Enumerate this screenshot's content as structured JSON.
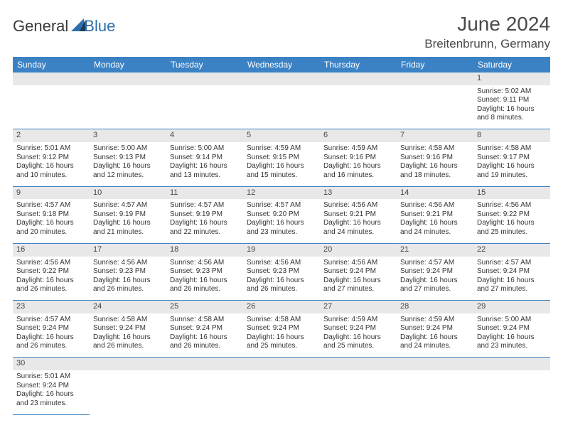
{
  "logo": {
    "text1": "General",
    "text2": "Blue"
  },
  "title": "June 2024",
  "subtitle": "Breitenbrunn, Germany",
  "dayHeaders": [
    "Sunday",
    "Monday",
    "Tuesday",
    "Wednesday",
    "Thursday",
    "Friday",
    "Saturday"
  ],
  "colors": {
    "headerBg": "#3b82c4",
    "headerText": "#ffffff",
    "dayNumBg": "#e8e8e8",
    "border": "#3b82c4",
    "textDark": "#333333"
  },
  "weeks": [
    [
      null,
      null,
      null,
      null,
      null,
      null,
      {
        "n": "1",
        "sr": "5:02 AM",
        "ss": "9:11 PM",
        "dl": "16 hours and 8 minutes."
      }
    ],
    [
      {
        "n": "2",
        "sr": "5:01 AM",
        "ss": "9:12 PM",
        "dl": "16 hours and 10 minutes."
      },
      {
        "n": "3",
        "sr": "5:00 AM",
        "ss": "9:13 PM",
        "dl": "16 hours and 12 minutes."
      },
      {
        "n": "4",
        "sr": "5:00 AM",
        "ss": "9:14 PM",
        "dl": "16 hours and 13 minutes."
      },
      {
        "n": "5",
        "sr": "4:59 AM",
        "ss": "9:15 PM",
        "dl": "16 hours and 15 minutes."
      },
      {
        "n": "6",
        "sr": "4:59 AM",
        "ss": "9:16 PM",
        "dl": "16 hours and 16 minutes."
      },
      {
        "n": "7",
        "sr": "4:58 AM",
        "ss": "9:16 PM",
        "dl": "16 hours and 18 minutes."
      },
      {
        "n": "8",
        "sr": "4:58 AM",
        "ss": "9:17 PM",
        "dl": "16 hours and 19 minutes."
      }
    ],
    [
      {
        "n": "9",
        "sr": "4:57 AM",
        "ss": "9:18 PM",
        "dl": "16 hours and 20 minutes."
      },
      {
        "n": "10",
        "sr": "4:57 AM",
        "ss": "9:19 PM",
        "dl": "16 hours and 21 minutes."
      },
      {
        "n": "11",
        "sr": "4:57 AM",
        "ss": "9:19 PM",
        "dl": "16 hours and 22 minutes."
      },
      {
        "n": "12",
        "sr": "4:57 AM",
        "ss": "9:20 PM",
        "dl": "16 hours and 23 minutes."
      },
      {
        "n": "13",
        "sr": "4:56 AM",
        "ss": "9:21 PM",
        "dl": "16 hours and 24 minutes."
      },
      {
        "n": "14",
        "sr": "4:56 AM",
        "ss": "9:21 PM",
        "dl": "16 hours and 24 minutes."
      },
      {
        "n": "15",
        "sr": "4:56 AM",
        "ss": "9:22 PM",
        "dl": "16 hours and 25 minutes."
      }
    ],
    [
      {
        "n": "16",
        "sr": "4:56 AM",
        "ss": "9:22 PM",
        "dl": "16 hours and 26 minutes."
      },
      {
        "n": "17",
        "sr": "4:56 AM",
        "ss": "9:23 PM",
        "dl": "16 hours and 26 minutes."
      },
      {
        "n": "18",
        "sr": "4:56 AM",
        "ss": "9:23 PM",
        "dl": "16 hours and 26 minutes."
      },
      {
        "n": "19",
        "sr": "4:56 AM",
        "ss": "9:23 PM",
        "dl": "16 hours and 26 minutes."
      },
      {
        "n": "20",
        "sr": "4:56 AM",
        "ss": "9:24 PM",
        "dl": "16 hours and 27 minutes."
      },
      {
        "n": "21",
        "sr": "4:57 AM",
        "ss": "9:24 PM",
        "dl": "16 hours and 27 minutes."
      },
      {
        "n": "22",
        "sr": "4:57 AM",
        "ss": "9:24 PM",
        "dl": "16 hours and 27 minutes."
      }
    ],
    [
      {
        "n": "23",
        "sr": "4:57 AM",
        "ss": "9:24 PM",
        "dl": "16 hours and 26 minutes."
      },
      {
        "n": "24",
        "sr": "4:58 AM",
        "ss": "9:24 PM",
        "dl": "16 hours and 26 minutes."
      },
      {
        "n": "25",
        "sr": "4:58 AM",
        "ss": "9:24 PM",
        "dl": "16 hours and 26 minutes."
      },
      {
        "n": "26",
        "sr": "4:58 AM",
        "ss": "9:24 PM",
        "dl": "16 hours and 25 minutes."
      },
      {
        "n": "27",
        "sr": "4:59 AM",
        "ss": "9:24 PM",
        "dl": "16 hours and 25 minutes."
      },
      {
        "n": "28",
        "sr": "4:59 AM",
        "ss": "9:24 PM",
        "dl": "16 hours and 24 minutes."
      },
      {
        "n": "29",
        "sr": "5:00 AM",
        "ss": "9:24 PM",
        "dl": "16 hours and 23 minutes."
      }
    ],
    [
      {
        "n": "30",
        "sr": "5:01 AM",
        "ss": "9:24 PM",
        "dl": "16 hours and 23 minutes."
      },
      null,
      null,
      null,
      null,
      null,
      null
    ]
  ],
  "labels": {
    "sunrise": "Sunrise:",
    "sunset": "Sunset:",
    "daylight": "Daylight:"
  }
}
